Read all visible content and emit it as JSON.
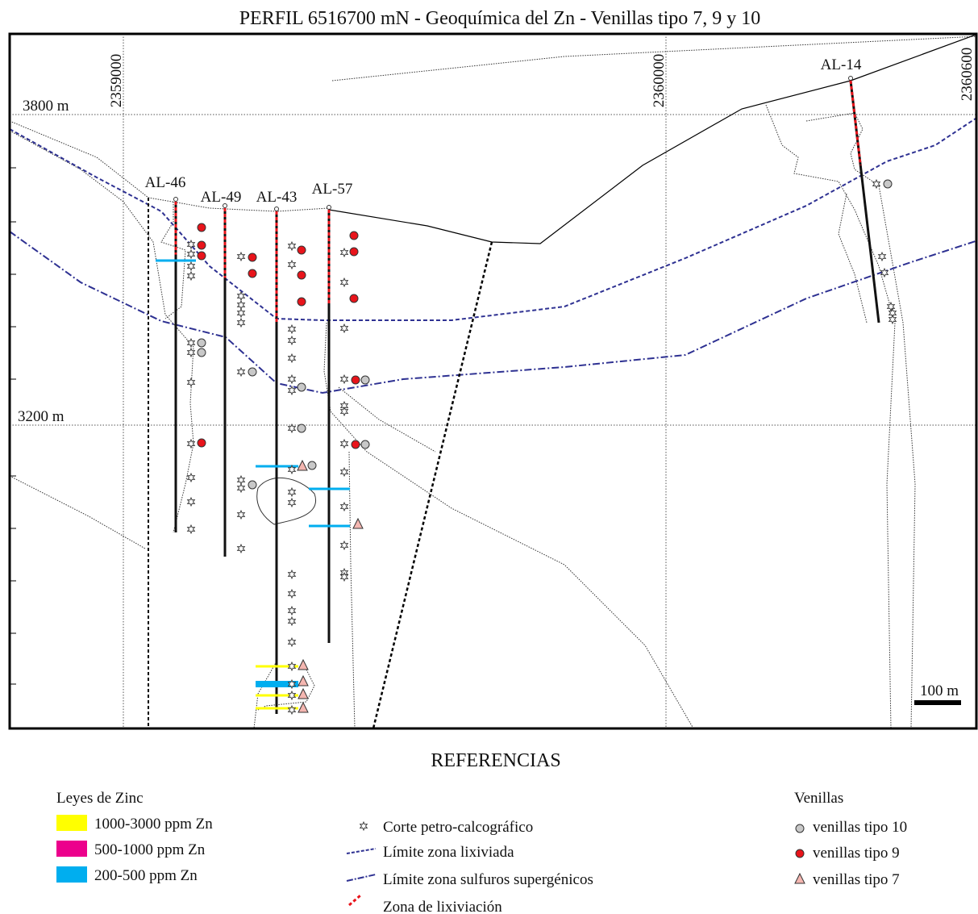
{
  "title": "PERFIL 6516700 mN - Geoquímica del Zn - Venillas tipo 7, 9 y 10",
  "section": {
    "elevation_labels": [
      "3800 m",
      "3200 m"
    ],
    "easting_labels": [
      "2359000",
      "2360000",
      "2360600"
    ],
    "drillholes": [
      "AL-46",
      "AL-49",
      "AL-43",
      "AL-57",
      "AL-14"
    ],
    "scale_bar": "100 m"
  },
  "references": {
    "title": "REFERENCIAS",
    "zinc": {
      "title": "Leyes de Zinc",
      "items": [
        {
          "label": "1000-3000 ppm Zn",
          "color": "#ffff00"
        },
        {
          "label": "500-1000 ppm Zn",
          "color": "#ec008c"
        },
        {
          "label": "200-500 ppm Zn",
          "color": "#00aeef"
        }
      ]
    },
    "symbols": [
      "Corte petro-calcográfico",
      "Límite zona lixiviada",
      "Límite zona sulfuros supergénicos",
      "Zona de lixiviación"
    ],
    "veinlets": {
      "title": "Venillas",
      "items": [
        {
          "label": "venillas tipo 10",
          "color": "#c8c8c8"
        },
        {
          "label": "venillas tipo 9",
          "color": "#e8141b"
        },
        {
          "label": "venillas tipo 7",
          "color": "#f4b6b0"
        }
      ]
    }
  }
}
